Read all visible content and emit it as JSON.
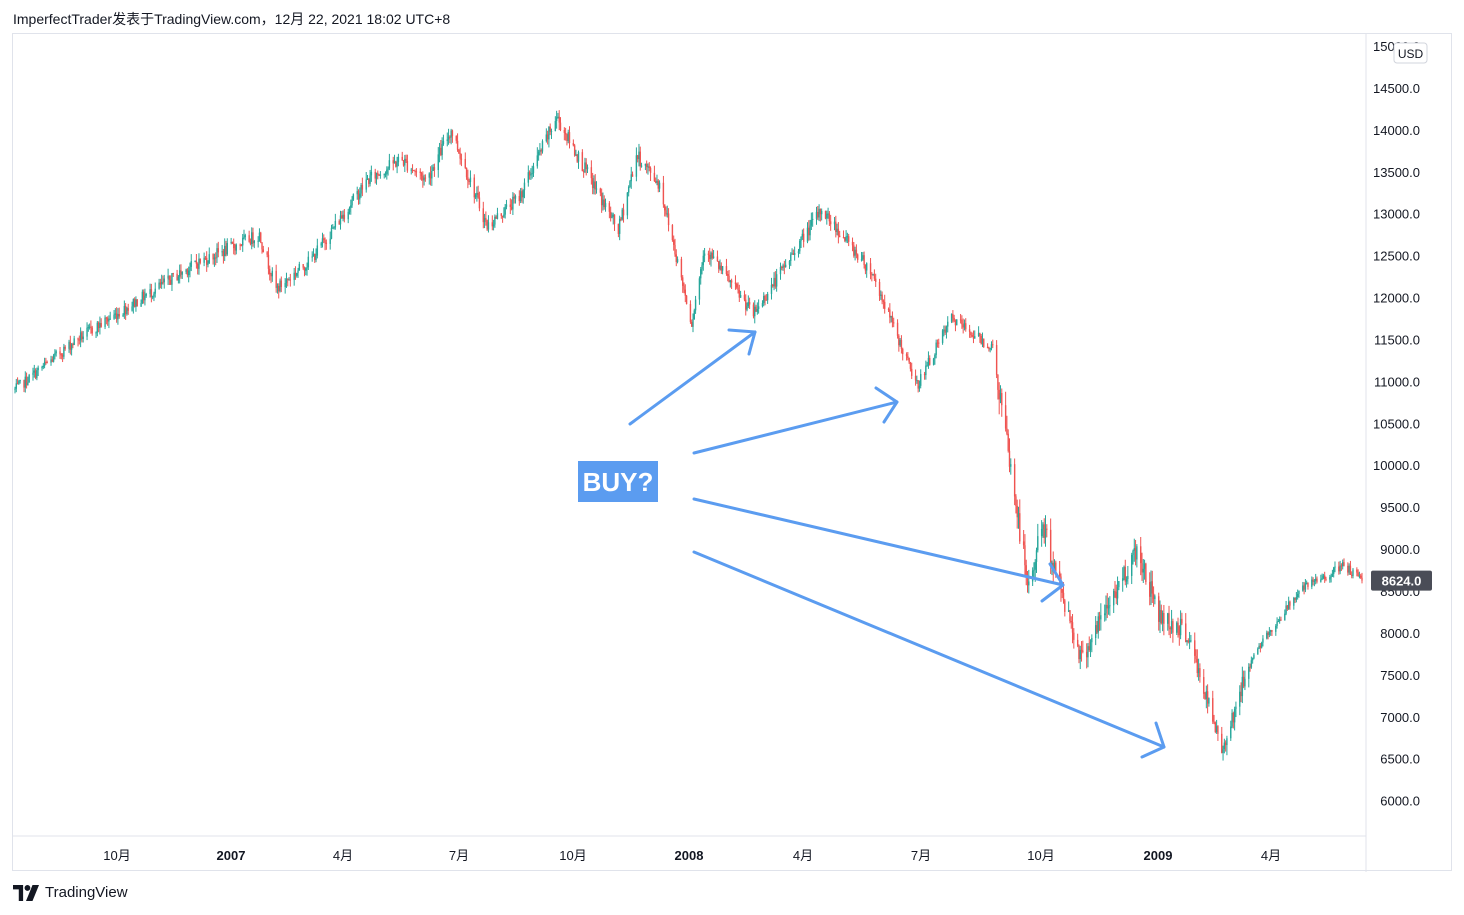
{
  "header": {
    "attribution": "ImperfectTrader发表于TradingView.com，12月 22, 2021 18:02 UTC+8"
  },
  "footer": {
    "brand": "TradingView",
    "logo_icon": "tradingview-logo-icon"
  },
  "annotation": {
    "text": "BUY?",
    "color": "#5b9cf0",
    "arrow_color": "#5b9cf0",
    "arrow_count": 4
  },
  "price_axis": {
    "currency": "USD",
    "labels": [
      "15000.0",
      "14500.0",
      "14000.0",
      "13500.0",
      "13000.0",
      "12500.0",
      "12000.0",
      "11500.0",
      "11000.0",
      "10500.0",
      "10000.0",
      "9500.0",
      "9000.0",
      "8500.0",
      "8000.0",
      "7500.0",
      "7000.0",
      "6500.0",
      "6000.0"
    ],
    "last_price": "8624.0",
    "last_price_bg": "#4a4d57"
  },
  "time_axis": {
    "labels": [
      {
        "text": "10月",
        "bold": false
      },
      {
        "text": "2007",
        "bold": true
      },
      {
        "text": "4月",
        "bold": false
      },
      {
        "text": "7月",
        "bold": false
      },
      {
        "text": "10月",
        "bold": false
      },
      {
        "text": "2008",
        "bold": true
      },
      {
        "text": "4月",
        "bold": false
      },
      {
        "text": "7月",
        "bold": false
      },
      {
        "text": "10月",
        "bold": false
      },
      {
        "text": "2009",
        "bold": true
      },
      {
        "text": "4月",
        "bold": false
      }
    ]
  },
  "chart_data": {
    "type": "candlestick",
    "up_color": "#26a69a",
    "down_color": "#ef5350",
    "ylim": [
      5700,
      15100
    ],
    "x_range": [
      "2006-08-14",
      "2009-06-26"
    ],
    "y_ticks": [
      15000,
      14500,
      14000,
      13500,
      13000,
      12500,
      12000,
      11500,
      11000,
      10500,
      10000,
      9500,
      9000,
      8500,
      8000,
      7500,
      7000,
      6500,
      6000
    ],
    "last_close": 8624.0,
    "waypoints": [
      {
        "date": "2006-08-14",
        "price": 10900
      },
      {
        "date": "2006-10-01",
        "price": 11500
      },
      {
        "date": "2007-01-01",
        "price": 12400
      },
      {
        "date": "2007-02-20",
        "price": 12750
      },
      {
        "date": "2007-03-05",
        "price": 12100
      },
      {
        "date": "2007-04-01",
        "price": 12450
      },
      {
        "date": "2007-05-15",
        "price": 13400
      },
      {
        "date": "2007-06-10",
        "price": 13650
      },
      {
        "date": "2007-06-30",
        "price": 13400
      },
      {
        "date": "2007-07-19",
        "price": 14000
      },
      {
        "date": "2007-08-16",
        "price": 12850
      },
      {
        "date": "2007-09-10",
        "price": 13200
      },
      {
        "date": "2007-10-09",
        "price": 14150
      },
      {
        "date": "2007-11-26",
        "price": 12800
      },
      {
        "date": "2007-12-10",
        "price": 13700
      },
      {
        "date": "2007-12-28",
        "price": 13350
      },
      {
        "date": "2008-01-22",
        "price": 11700
      },
      {
        "date": "2008-02-01",
        "price": 12600
      },
      {
        "date": "2008-03-10",
        "price": 11800
      },
      {
        "date": "2008-05-02",
        "price": 13050
      },
      {
        "date": "2008-06-10",
        "price": 12300
      },
      {
        "date": "2008-07-15",
        "price": 10950
      },
      {
        "date": "2008-08-11",
        "price": 11750
      },
      {
        "date": "2008-09-12",
        "price": 11400
      },
      {
        "date": "2008-10-10",
        "price": 8500
      },
      {
        "date": "2008-10-20",
        "price": 9300
      },
      {
        "date": "2008-11-20",
        "price": 7700
      },
      {
        "date": "2009-01-02",
        "price": 9000
      },
      {
        "date": "2009-01-20",
        "price": 8200
      },
      {
        "date": "2009-02-10",
        "price": 8000
      },
      {
        "date": "2009-03-09",
        "price": 6600
      },
      {
        "date": "2009-04-01",
        "price": 7700
      },
      {
        "date": "2009-05-08",
        "price": 8500
      },
      {
        "date": "2009-06-12",
        "price": 8800
      },
      {
        "date": "2009-06-26",
        "price": 8624
      }
    ]
  }
}
